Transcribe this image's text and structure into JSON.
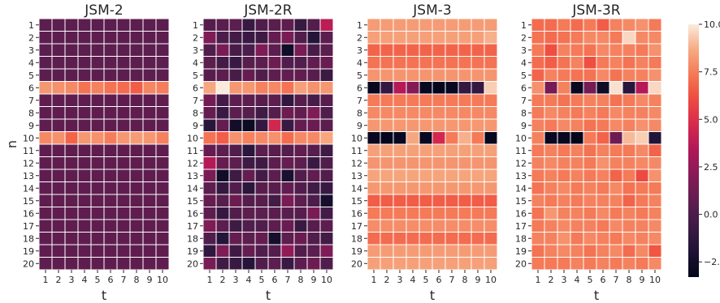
{
  "chart_data": {
    "type": "heatmap",
    "colormap": "rocket",
    "colorbar": {
      "vmin": -3.3,
      "vmax": 10.0,
      "ticks": [
        -2.5,
        0.0,
        2.5,
        5.0,
        7.5,
        10.0
      ],
      "tick_labels": [
        "−2.5",
        "0.0",
        "2.5",
        "5.0",
        "7.5",
        "10.0"
      ]
    },
    "panels": [
      {
        "title": "JSM-2",
        "xlabel": "t",
        "ylabel": "n",
        "x_labels": [
          "1",
          "2",
          "3",
          "4",
          "5",
          "6",
          "7",
          "8",
          "9",
          "10"
        ],
        "y_labels": [
          "1",
          "2",
          "3",
          "4",
          "5",
          "6",
          "7",
          "8",
          "9",
          "10",
          "11",
          "12",
          "13",
          "14",
          "15",
          "16",
          "17",
          "18",
          "19",
          "20"
        ],
        "values": [
          [
            0.6,
            0.6,
            0.6,
            0.6,
            0.6,
            0.6,
            0.6,
            0.6,
            0.6,
            0.6
          ],
          [
            0.6,
            0.6,
            0.6,
            0.6,
            0.6,
            0.6,
            0.6,
            0.6,
            0.6,
            0.6
          ],
          [
            0.6,
            0.6,
            0.6,
            0.6,
            0.6,
            0.6,
            0.6,
            0.6,
            0.6,
            0.6
          ],
          [
            0.6,
            0.6,
            0.6,
            0.6,
            0.6,
            0.6,
            0.6,
            0.6,
            0.6,
            0.6
          ],
          [
            0.6,
            0.6,
            0.6,
            0.6,
            0.6,
            0.6,
            0.6,
            0.6,
            0.6,
            0.6
          ],
          [
            8.2,
            8.0,
            7.8,
            7.2,
            7.6,
            7.2,
            7.0,
            6.6,
            7.7,
            7.5
          ],
          [
            0.7,
            0.7,
            0.7,
            0.7,
            0.7,
            0.7,
            0.7,
            0.7,
            0.7,
            0.7
          ],
          [
            0.7,
            0.7,
            0.7,
            0.7,
            0.7,
            0.7,
            0.7,
            0.7,
            0.7,
            0.7
          ],
          [
            0.7,
            0.7,
            0.7,
            0.7,
            0.7,
            0.7,
            0.7,
            0.7,
            0.7,
            0.7
          ],
          [
            7.8,
            8.0,
            6.8,
            8.2,
            8.0,
            7.5,
            8.2,
            8.3,
            8.2,
            7.6
          ],
          [
            0.7,
            0.7,
            0.7,
            0.7,
            0.7,
            0.7,
            0.7,
            0.7,
            0.7,
            0.7
          ],
          [
            0.7,
            0.7,
            0.7,
            0.7,
            0.7,
            0.7,
            0.7,
            0.7,
            0.7,
            0.7
          ],
          [
            0.7,
            0.7,
            0.7,
            0.7,
            0.7,
            0.7,
            0.7,
            0.7,
            0.7,
            0.7
          ],
          [
            0.7,
            0.7,
            0.7,
            0.7,
            0.7,
            0.7,
            0.7,
            0.7,
            0.7,
            0.7
          ],
          [
            0.7,
            0.7,
            0.7,
            0.7,
            0.7,
            0.7,
            0.7,
            0.7,
            0.7,
            0.7
          ],
          [
            0.7,
            0.7,
            0.7,
            0.7,
            0.7,
            0.7,
            0.7,
            0.7,
            0.7,
            0.7
          ],
          [
            0.7,
            0.7,
            0.7,
            0.7,
            0.7,
            0.7,
            0.7,
            0.7,
            0.7,
            0.7
          ],
          [
            0.7,
            0.7,
            0.7,
            0.7,
            0.7,
            0.7,
            0.7,
            0.7,
            0.7,
            0.7
          ],
          [
            0.7,
            0.7,
            0.7,
            0.7,
            0.7,
            0.7,
            0.7,
            0.7,
            0.7,
            0.7
          ],
          [
            0.7,
            0.7,
            0.7,
            0.7,
            0.7,
            0.7,
            0.7,
            0.7,
            0.7,
            0.7
          ]
        ]
      },
      {
        "title": "JSM-2R",
        "xlabel": "t",
        "ylabel": "",
        "x_labels": [
          "1",
          "2",
          "3",
          "4",
          "5",
          "6",
          "7",
          "8",
          "9",
          "10"
        ],
        "y_labels": [
          "1",
          "2",
          "3",
          "4",
          "5",
          "6",
          "7",
          "8",
          "9",
          "10",
          "11",
          "12",
          "13",
          "14",
          "15",
          "16",
          "17",
          "18",
          "19",
          "20"
        ],
        "values": [
          [
            0.3,
            0.5,
            0.6,
            -0.8,
            0.2,
            0.5,
            0.7,
            -0.9,
            0.3,
            3.8
          ],
          [
            1.8,
            0.0,
            -0.4,
            -0.8,
            -0.6,
            0.9,
            1.6,
            0.2,
            -1.6,
            0.6
          ],
          [
            0.2,
            1.6,
            -0.2,
            0.0,
            1.8,
            0.6,
            -2.6,
            1.6,
            -0.2,
            0.6
          ],
          [
            0.6,
            -0.4,
            -0.8,
            0.4,
            0.6,
            1.2,
            0.2,
            0.2,
            0.8,
            1.0
          ],
          [
            0.4,
            0.6,
            -0.2,
            0.9,
            0.2,
            0.6,
            0.8,
            0.8,
            0.4,
            -0.7
          ],
          [
            8.6,
            10.0,
            8.2,
            8.2,
            7.6,
            7.8,
            7.2,
            8.4,
            8.0,
            8.2
          ],
          [
            1.4,
            -0.3,
            0.6,
            0.6,
            0.4,
            0.6,
            -1.2,
            0.4,
            -0.2,
            0.4
          ],
          [
            0.9,
            -0.8,
            0.6,
            0.4,
            -0.5,
            0.3,
            1.2,
            0.8,
            1.8,
            0.2
          ],
          [
            -1.5,
            0.9,
            -2.5,
            -2.8,
            -1.0,
            4.5,
            -0.8,
            0.9,
            1.0,
            0.6
          ],
          [
            7.2,
            6.6,
            8.0,
            7.6,
            7.8,
            8.0,
            7.0,
            7.8,
            7.8,
            8.6
          ],
          [
            0.9,
            0.6,
            0.2,
            -1.4,
            0.6,
            0.5,
            0.3,
            0.8,
            0.4,
            -0.5
          ],
          [
            3.6,
            0.9,
            0.6,
            -0.6,
            -0.6,
            0.6,
            0.9,
            0.6,
            -0.8,
            0.2
          ],
          [
            1.6,
            -2.6,
            -0.6,
            0.9,
            -0.3,
            0.6,
            -2.2,
            0.2,
            0.8,
            0.2
          ],
          [
            0.6,
            -1.0,
            0.2,
            -1.4,
            0.4,
            0.4,
            0.8,
            0.2,
            -0.5,
            -0.8
          ],
          [
            0.9,
            0.4,
            1.2,
            0.3,
            0.4,
            -0.4,
            1.6,
            0.6,
            0.0,
            -2.4
          ],
          [
            0.6,
            -1.0,
            0.2,
            0.6,
            0.6,
            0.5,
            0.5,
            0.4,
            1.6,
            -0.4
          ],
          [
            1.8,
            0.6,
            -0.6,
            0.2,
            0.2,
            0.6,
            1.0,
            -0.8,
            0.4,
            0.6
          ],
          [
            0.2,
            -1.6,
            0.9,
            0.6,
            0.9,
            -2.4,
            0.6,
            1.1,
            0.2,
            -0.4
          ],
          [
            -1.2,
            1.8,
            -0.6,
            0.9,
            0.2,
            0.3,
            2.4,
            0.2,
            0.6,
            1.8
          ],
          [
            1.6,
            -0.5,
            -0.9,
            -1.6,
            0.2,
            0.6,
            -0.8,
            0.6,
            1.2,
            0.2
          ]
        ]
      },
      {
        "title": "JSM-3",
        "xlabel": "t",
        "ylabel": "",
        "x_labels": [
          "1",
          "2",
          "3",
          "4",
          "5",
          "6",
          "7",
          "8",
          "9",
          "10"
        ],
        "y_labels": [
          "1",
          "2",
          "3",
          "4",
          "5",
          "6",
          "7",
          "8",
          "9",
          "10",
          "11",
          "12",
          "13",
          "14",
          "15",
          "16",
          "17",
          "18",
          "19",
          "20"
        ],
        "values": [
          [
            8.3,
            8.3,
            8.3,
            8.3,
            8.3,
            8.3,
            8.3,
            8.3,
            8.3,
            8.3
          ],
          [
            8.4,
            8.4,
            8.4,
            8.4,
            8.4,
            8.4,
            8.4,
            8.4,
            8.4,
            8.8
          ],
          [
            6.8,
            6.8,
            6.8,
            6.8,
            6.8,
            6.8,
            6.8,
            6.8,
            6.8,
            6.8
          ],
          [
            7.2,
            7.2,
            7.2,
            7.2,
            7.2,
            7.2,
            7.2,
            7.2,
            7.2,
            7.2
          ],
          [
            8.1,
            8.1,
            8.1,
            8.1,
            8.1,
            8.1,
            8.1,
            8.1,
            8.1,
            8.1
          ],
          [
            -3.0,
            -1.0,
            3.6,
            2.0,
            -3.0,
            -3.2,
            -3.0,
            -1.0,
            -1.0,
            9.4
          ],
          [
            7.4,
            7.4,
            7.4,
            7.4,
            7.4,
            7.4,
            7.4,
            7.4,
            7.4,
            7.4
          ],
          [
            7.8,
            7.8,
            7.8,
            7.8,
            7.8,
            7.8,
            7.8,
            7.8,
            7.8,
            7.8
          ],
          [
            8.2,
            8.2,
            8.2,
            8.2,
            8.2,
            8.2,
            8.2,
            8.2,
            8.2,
            8.2
          ],
          [
            -3.0,
            -3.2,
            -3.0,
            8.6,
            -3.0,
            4.6,
            7.4,
            8.8,
            7.4,
            -3.1
          ],
          [
            8.4,
            8.4,
            8.4,
            8.4,
            8.4,
            8.4,
            8.4,
            8.4,
            8.4,
            8.4
          ],
          [
            8.1,
            8.1,
            8.1,
            8.1,
            8.1,
            8.1,
            8.1,
            8.1,
            8.1,
            8.1
          ],
          [
            8.5,
            8.5,
            8.5,
            8.5,
            8.5,
            8.5,
            8.5,
            8.5,
            8.5,
            8.5
          ],
          [
            8.2,
            8.2,
            8.2,
            8.2,
            8.2,
            8.2,
            8.2,
            8.2,
            8.2,
            8.2
          ],
          [
            6.6,
            6.6,
            6.6,
            6.6,
            6.6,
            6.6,
            6.6,
            6.6,
            6.6,
            6.6
          ],
          [
            7.4,
            7.4,
            7.4,
            7.4,
            7.4,
            7.4,
            7.4,
            7.4,
            7.4,
            7.4
          ],
          [
            7.9,
            7.9,
            7.9,
            7.9,
            7.9,
            7.9,
            7.9,
            7.9,
            7.9,
            7.9
          ],
          [
            7.0,
            7.0,
            7.0,
            7.0,
            7.0,
            7.0,
            7.0,
            7.0,
            7.0,
            7.0
          ],
          [
            8.3,
            8.3,
            8.3,
            8.3,
            8.3,
            8.3,
            8.3,
            8.3,
            8.3,
            8.3
          ],
          [
            8.4,
            8.4,
            8.4,
            8.4,
            8.4,
            8.4,
            8.4,
            8.4,
            8.4,
            8.4
          ]
        ]
      },
      {
        "title": "JSM-3R",
        "xlabel": "t",
        "ylabel": "",
        "x_labels": [
          "1",
          "2",
          "3",
          "4",
          "5",
          "6",
          "7",
          "8",
          "9",
          "10"
        ],
        "y_labels": [
          "1",
          "2",
          "3",
          "4",
          "5",
          "6",
          "7",
          "8",
          "9",
          "10",
          "11",
          "12",
          "13",
          "14",
          "15",
          "16",
          "17",
          "18",
          "19",
          "20"
        ],
        "values": [
          [
            7.0,
            7.0,
            7.4,
            7.0,
            7.4,
            6.6,
            7.6,
            7.8,
            8.0,
            7.4
          ],
          [
            7.2,
            7.0,
            7.2,
            7.4,
            7.8,
            7.8,
            7.4,
            9.6,
            7.8,
            7.8
          ],
          [
            7.4,
            6.2,
            7.6,
            7.4,
            7.2,
            7.8,
            7.6,
            7.6,
            7.4,
            8.0
          ],
          [
            7.0,
            6.6,
            7.2,
            7.6,
            6.2,
            7.4,
            7.6,
            7.2,
            7.6,
            7.4
          ],
          [
            6.8,
            7.6,
            7.4,
            7.2,
            7.2,
            7.8,
            7.2,
            7.6,
            7.6,
            8.0
          ],
          [
            8.0,
            1.5,
            7.6,
            -3.0,
            1.5,
            -2.6,
            9.8,
            -1.5,
            3.6,
            9.6
          ],
          [
            7.4,
            7.4,
            7.2,
            7.4,
            7.6,
            7.6,
            7.2,
            7.4,
            7.8,
            7.6
          ],
          [
            7.4,
            7.8,
            7.6,
            7.4,
            7.6,
            7.4,
            7.8,
            7.6,
            7.6,
            7.8
          ],
          [
            7.6,
            7.4,
            7.8,
            7.6,
            7.2,
            7.4,
            7.8,
            7.6,
            8.0,
            7.8
          ],
          [
            7.6,
            -3.0,
            -3.0,
            -3.2,
            7.4,
            6.8,
            1.2,
            9.0,
            9.4,
            -1.8
          ],
          [
            7.4,
            7.6,
            7.4,
            7.6,
            7.2,
            7.6,
            7.4,
            7.4,
            7.8,
            6.8
          ],
          [
            7.6,
            7.8,
            7.6,
            7.6,
            7.4,
            8.0,
            7.6,
            7.6,
            7.8,
            7.8
          ],
          [
            7.4,
            7.6,
            7.4,
            7.6,
            7.4,
            7.6,
            6.8,
            7.4,
            6.0,
            8.0
          ],
          [
            7.2,
            7.6,
            7.8,
            7.4,
            7.6,
            7.4,
            7.8,
            7.2,
            7.4,
            7.4
          ],
          [
            7.6,
            7.4,
            7.6,
            7.4,
            7.6,
            7.6,
            7.6,
            6.8,
            7.4,
            7.6
          ],
          [
            7.2,
            8.2,
            7.6,
            7.6,
            7.4,
            7.8,
            7.4,
            7.6,
            7.4,
            7.6
          ],
          [
            7.4,
            7.6,
            7.8,
            7.6,
            7.6,
            7.4,
            7.8,
            7.6,
            7.6,
            7.8
          ],
          [
            7.6,
            7.6,
            8.0,
            7.4,
            7.8,
            7.6,
            7.4,
            7.8,
            7.6,
            7.8
          ],
          [
            7.2,
            7.6,
            7.8,
            7.6,
            7.2,
            7.6,
            7.8,
            7.0,
            7.8,
            6.4
          ],
          [
            7.4,
            7.4,
            7.4,
            7.6,
            7.4,
            7.6,
            7.4,
            7.6,
            7.4,
            7.8
          ]
        ]
      }
    ]
  }
}
